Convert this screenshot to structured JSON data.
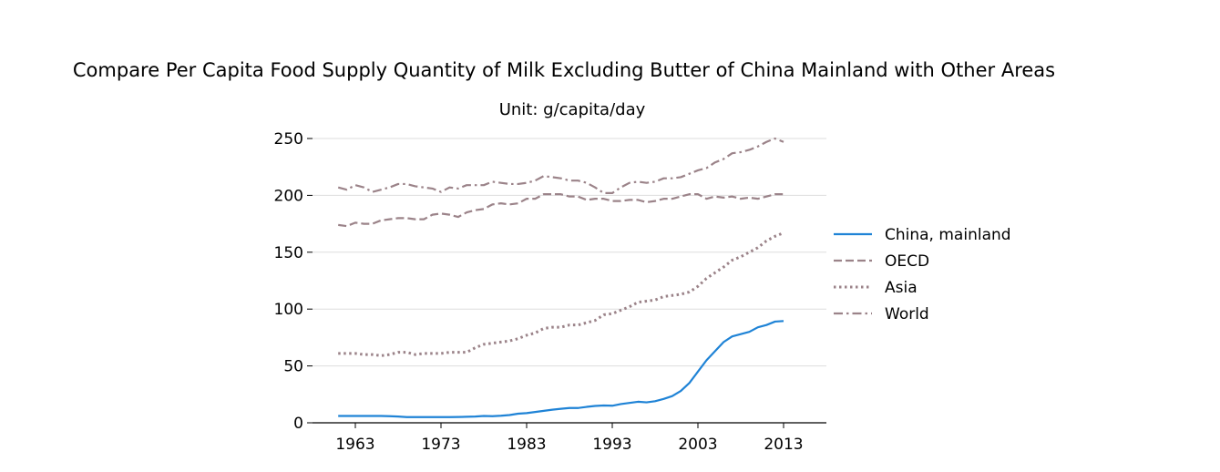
{
  "chart_data": {
    "type": "line",
    "title": "Compare Per Capita Food Supply Quantity of Milk Excluding Butter of China Mainland with Other Areas",
    "subtitle": "Unit: g/capita/day",
    "xlabel": "",
    "ylabel": "",
    "xlim": [
      1958,
      2018
    ],
    "ylim": [
      0,
      250
    ],
    "xticks": [
      1963,
      1973,
      1983,
      1993,
      2003,
      2013
    ],
    "yticks": [
      0,
      50,
      100,
      150,
      200,
      250
    ],
    "grid": "horizontal",
    "legend_position": "right",
    "x": [
      1961,
      1962,
      1963,
      1964,
      1965,
      1966,
      1967,
      1968,
      1969,
      1970,
      1971,
      1972,
      1973,
      1974,
      1975,
      1976,
      1977,
      1978,
      1979,
      1980,
      1981,
      1982,
      1983,
      1984,
      1985,
      1986,
      1987,
      1988,
      1989,
      1990,
      1991,
      1992,
      1993,
      1994,
      1995,
      1996,
      1997,
      1998,
      1999,
      2000,
      2001,
      2002,
      2003,
      2004,
      2005,
      2006,
      2007,
      2008,
      2009,
      2010,
      2011,
      2012,
      2013
    ],
    "series": [
      {
        "name": "China, mainland",
        "color": "#1f83d6",
        "style": "solid",
        "values": [
          6,
          6,
          6,
          6,
          6,
          6,
          5.8,
          5.5,
          5,
          5,
          5,
          5,
          5,
          5,
          5.1,
          5.3,
          5.5,
          6,
          5.8,
          6.2,
          6.8,
          8,
          8.5,
          9.5,
          10.5,
          11.5,
          12.3,
          13,
          13,
          14,
          14.8,
          15.2,
          15,
          16.5,
          17.5,
          18.5,
          18,
          19,
          21,
          23.5,
          28,
          35,
          45,
          55,
          63,
          71,
          76,
          78,
          80,
          84,
          86,
          89,
          89.5
        ]
      },
      {
        "name": "OECD",
        "color": "#9b8389",
        "style": "dashed",
        "values": [
          174,
          173,
          176,
          175,
          175,
          178,
          179,
          180,
          180,
          179,
          179,
          183,
          184,
          183,
          181,
          185,
          187,
          188,
          192,
          193,
          192,
          193,
          197,
          197,
          201,
          201,
          201,
          199,
          199,
          196,
          197,
          197,
          195,
          195,
          196,
          196,
          194,
          195,
          197,
          197,
          199,
          201,
          201,
          197,
          199,
          198,
          199,
          197,
          198,
          197,
          199,
          201,
          201
        ]
      },
      {
        "name": "Asia",
        "color": "#9b8389",
        "style": "dotted",
        "values": [
          61,
          61,
          61,
          60,
          60,
          59,
          60,
          62,
          62,
          60,
          61,
          61,
          61,
          62,
          62,
          62,
          66,
          69,
          70,
          71,
          72,
          74,
          77,
          79,
          83,
          84,
          84,
          86,
          86,
          88,
          90,
          95,
          96,
          99,
          102,
          106,
          107,
          108,
          111,
          112,
          113,
          115,
          120,
          127,
          132,
          137,
          143,
          146,
          150,
          154,
          160,
          164,
          167
        ]
      },
      {
        "name": "World",
        "color": "#9b8389",
        "style": "dashdot",
        "values": [
          207,
          205,
          209,
          207,
          203,
          205,
          207,
          210,
          210,
          208,
          207,
          206,
          203,
          207,
          206,
          209,
          209,
          209,
          212,
          211,
          210,
          210,
          211,
          213,
          217,
          216,
          215,
          213,
          213,
          211,
          207,
          202,
          202,
          207,
          211,
          212,
          211,
          212,
          215,
          215,
          216,
          219,
          222,
          224,
          229,
          232,
          237,
          238,
          240,
          243,
          247,
          250,
          247
        ]
      }
    ]
  }
}
